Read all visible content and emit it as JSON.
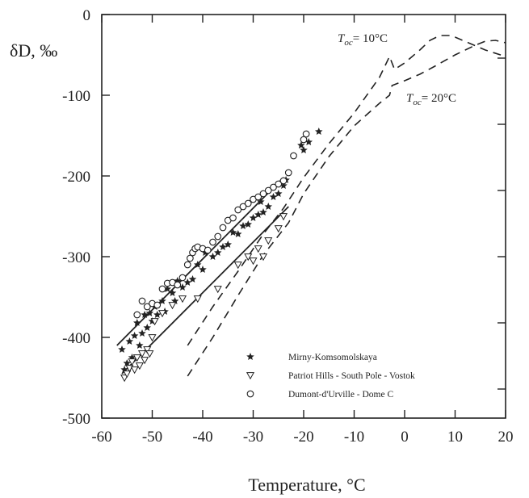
{
  "chart_data": {
    "type": "scatter",
    "xlabel": "Temperature, °C",
    "ylabel": "δD, ‰",
    "xlim": [
      -60,
      20
    ],
    "ylim": [
      -500,
      0
    ],
    "xticks": [
      -60,
      -50,
      -40,
      -30,
      -20,
      -10,
      0,
      10,
      20
    ],
    "yticks": [
      0,
      -100,
      -200,
      -300,
      -400,
      -500
    ],
    "grid": false,
    "legend_position": "bottom-right",
    "colors": {
      "ink": "#222222"
    },
    "series": [
      {
        "name": "Mirny-Komsomolskaya",
        "kind": "points",
        "marker": "star",
        "points": [
          [
            -56,
            -415
          ],
          [
            -55.5,
            -440
          ],
          [
            -55,
            -432
          ],
          [
            -54.5,
            -405
          ],
          [
            -54,
            -425
          ],
          [
            -53.5,
            -398
          ],
          [
            -53,
            -382
          ],
          [
            -52.5,
            -410
          ],
          [
            -52,
            -395
          ],
          [
            -51.5,
            -372
          ],
          [
            -51,
            -388
          ],
          [
            -50.5,
            -370
          ],
          [
            -50,
            -380
          ],
          [
            -49.5,
            -362
          ],
          [
            -49,
            -372
          ],
          [
            -48,
            -355
          ],
          [
            -47.5,
            -368
          ],
          [
            -47,
            -340
          ],
          [
            -46,
            -345
          ],
          [
            -45.5,
            -355
          ],
          [
            -45,
            -330
          ],
          [
            -44,
            -338
          ],
          [
            -43,
            -332
          ],
          [
            -42,
            -328
          ],
          [
            -41,
            -310
          ],
          [
            -40,
            -316
          ],
          [
            -39.5,
            -295
          ],
          [
            -38,
            -300
          ],
          [
            -37,
            -295
          ],
          [
            -36,
            -288
          ],
          [
            -35,
            -285
          ],
          [
            -34,
            -270
          ],
          [
            -33,
            -272
          ],
          [
            -32,
            -262
          ],
          [
            -31,
            -260
          ],
          [
            -30,
            -252
          ],
          [
            -29,
            -248
          ],
          [
            -28.5,
            -232
          ],
          [
            -28,
            -245
          ],
          [
            -27,
            -238
          ],
          [
            -26,
            -226
          ],
          [
            -25,
            -222
          ],
          [
            -24,
            -212
          ],
          [
            -23.5,
            -205
          ],
          [
            -20.5,
            -162
          ],
          [
            -20,
            -168
          ],
          [
            -19,
            -158
          ],
          [
            -17,
            -145
          ]
        ]
      },
      {
        "name": "Patriot Hills - South Pole - Vostok",
        "kind": "points",
        "marker": "triangle-down",
        "points": [
          [
            -55.5,
            -450
          ],
          [
            -55,
            -445
          ],
          [
            -54.5,
            -438
          ],
          [
            -54,
            -430
          ],
          [
            -53.5,
            -440
          ],
          [
            -53,
            -425
          ],
          [
            -52.5,
            -435
          ],
          [
            -52,
            -420
          ],
          [
            -51.5,
            -428
          ],
          [
            -51,
            -415
          ],
          [
            -50.5,
            -420
          ],
          [
            -50,
            -400
          ],
          [
            -49.5,
            -380
          ],
          [
            -48,
            -370
          ],
          [
            -46,
            -360
          ],
          [
            -44,
            -352
          ],
          [
            -41,
            -352
          ],
          [
            -37,
            -340
          ],
          [
            -33,
            -310
          ],
          [
            -31,
            -300
          ],
          [
            -30,
            -305
          ],
          [
            -29,
            -290
          ],
          [
            -28,
            -300
          ],
          [
            -27,
            -280
          ],
          [
            -25,
            -265
          ],
          [
            -24,
            -250
          ]
        ]
      },
      {
        "name": "Dumont-d'Urville - Dome C",
        "kind": "points",
        "marker": "circle",
        "points": [
          [
            -53,
            -372
          ],
          [
            -52,
            -355
          ],
          [
            -51,
            -362
          ],
          [
            -50,
            -358
          ],
          [
            -49,
            -360
          ],
          [
            -48,
            -340
          ],
          [
            -47,
            -333
          ],
          [
            -46,
            -332
          ],
          [
            -45,
            -335
          ],
          [
            -44,
            -326
          ],
          [
            -43,
            -310
          ],
          [
            -42.5,
            -302
          ],
          [
            -42,
            -295
          ],
          [
            -41.5,
            -290
          ],
          [
            -41,
            -288
          ],
          [
            -40,
            -290
          ],
          [
            -39,
            -292
          ],
          [
            -38,
            -282
          ],
          [
            -37,
            -275
          ],
          [
            -36,
            -264
          ],
          [
            -35,
            -255
          ],
          [
            -34,
            -252
          ],
          [
            -33,
            -242
          ],
          [
            -32,
            -238
          ],
          [
            -31,
            -234
          ],
          [
            -30,
            -229
          ],
          [
            -29,
            -226
          ],
          [
            -28,
            -222
          ],
          [
            -27,
            -218
          ],
          [
            -26,
            -214
          ],
          [
            -25,
            -210
          ],
          [
            -24,
            -206
          ],
          [
            -23,
            -196
          ],
          [
            -22,
            -175
          ],
          [
            -20,
            -155
          ],
          [
            -19.5,
            -148
          ]
        ]
      },
      {
        "kind": "fit-line",
        "style": "solid",
        "points": [
          [
            -57,
            -410
          ],
          [
            -24,
            -202
          ]
        ]
      },
      {
        "kind": "fit-line",
        "style": "solid",
        "points": [
          [
            -56,
            -445
          ],
          [
            -23,
            -238
          ]
        ]
      },
      {
        "kind": "model-curve",
        "style": "dashed",
        "annotation": "Toc = 10°C",
        "points": [
          [
            -43,
            -410
          ],
          [
            -38,
            -362
          ],
          [
            -33,
            -318
          ],
          [
            -28,
            -272
          ],
          [
            -24,
            -240
          ],
          [
            -20,
            -202
          ],
          [
            -15,
            -160
          ],
          [
            -10,
            -122
          ],
          [
            -5,
            -78
          ],
          [
            -3,
            -52
          ],
          [
            -2,
            -68
          ],
          [
            0,
            -60
          ],
          [
            3,
            -44
          ],
          [
            5,
            -32
          ],
          [
            7,
            -26
          ],
          [
            9,
            -26
          ],
          [
            10,
            -28
          ],
          [
            13,
            -36
          ],
          [
            16,
            -44
          ],
          [
            20,
            -52
          ]
        ]
      },
      {
        "kind": "model-curve",
        "style": "dashed",
        "annotation": "Toc = 20°C",
        "points": [
          [
            -43,
            -448
          ],
          [
            -38,
            -400
          ],
          [
            -33,
            -348
          ],
          [
            -28,
            -298
          ],
          [
            -23,
            -258
          ],
          [
            -20,
            -222
          ],
          [
            -15,
            -176
          ],
          [
            -10,
            -138
          ],
          [
            -5,
            -110
          ],
          [
            -3,
            -100
          ],
          [
            -2.5,
            -88
          ],
          [
            0,
            -82
          ],
          [
            3,
            -74
          ],
          [
            6,
            -64
          ],
          [
            10,
            -50
          ],
          [
            14,
            -38
          ],
          [
            16,
            -33
          ],
          [
            18,
            -32
          ],
          [
            20,
            -35
          ]
        ]
      }
    ]
  },
  "annotations": {
    "toc10": {
      "symbol": "T",
      "subscript": "oc",
      "rest": "= 10°C"
    },
    "toc20": {
      "symbol": "T",
      "subscript": "oc",
      "rest": "= 20°C"
    }
  }
}
